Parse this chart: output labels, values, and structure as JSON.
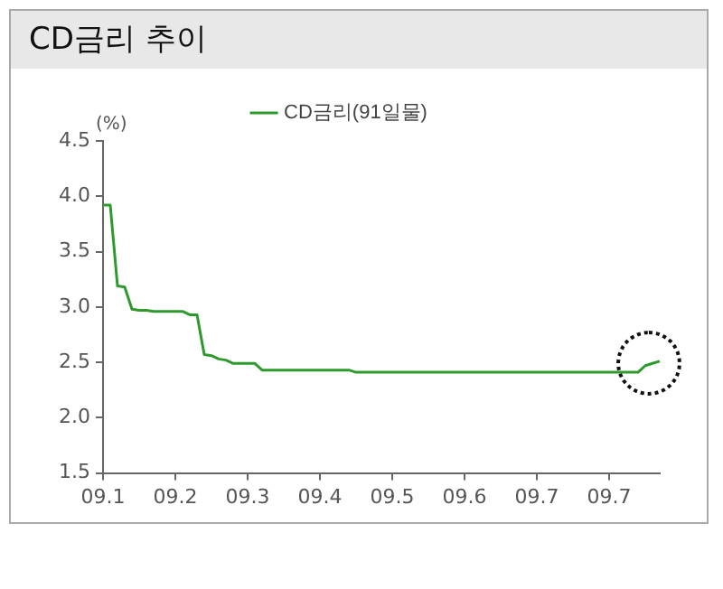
{
  "chart_data": {
    "type": "line",
    "title": "CD금리 추이",
    "ylabel": "(%)",
    "categories": [
      "09.1",
      null,
      null,
      null,
      null,
      null,
      null,
      null,
      null,
      null,
      "09.2",
      null,
      null,
      null,
      null,
      null,
      null,
      null,
      null,
      null,
      "09.3",
      null,
      null,
      null,
      null,
      null,
      null,
      null,
      null,
      null,
      "09.4",
      null,
      null,
      null,
      null,
      null,
      null,
      null,
      null,
      null,
      "09.5",
      null,
      null,
      null,
      null,
      null,
      null,
      null,
      null,
      null,
      "09.6",
      null,
      null,
      null,
      null,
      null,
      null,
      null,
      null,
      null,
      "09.7",
      null,
      null,
      null,
      null,
      null,
      null,
      null,
      null,
      null,
      "09.7",
      null,
      null,
      null,
      null,
      null,
      null,
      null
    ],
    "series": [
      {
        "name": "CD금리(91일물)",
        "color": "#2e9a2e",
        "values": [
          3.92,
          3.92,
          3.19,
          3.18,
          2.98,
          2.97,
          2.97,
          2.96,
          2.96,
          2.96,
          2.96,
          2.96,
          2.93,
          2.93,
          2.57,
          2.56,
          2.53,
          2.52,
          2.49,
          2.49,
          2.49,
          2.49,
          2.43,
          2.43,
          2.43,
          2.43,
          2.43,
          2.43,
          2.43,
          2.43,
          2.43,
          2.43,
          2.43,
          2.43,
          2.43,
          2.41,
          2.41,
          2.41,
          2.41,
          2.41,
          2.41,
          2.41,
          2.41,
          2.41,
          2.41,
          2.41,
          2.41,
          2.41,
          2.41,
          2.41,
          2.41,
          2.41,
          2.41,
          2.41,
          2.41,
          2.41,
          2.41,
          2.41,
          2.41,
          2.41,
          2.41,
          2.41,
          2.41,
          2.41,
          2.41,
          2.41,
          2.41,
          2.41,
          2.41,
          2.41,
          2.41,
          2.41,
          2.41,
          2.41,
          2.41,
          2.47,
          2.49,
          2.51
        ]
      }
    ],
    "ylim": [
      1.5,
      4.5
    ],
    "yticks": [
      {
        "value": 1.5,
        "label": "1.5"
      },
      {
        "value": 2,
        "label": "2.0"
      },
      {
        "value": 2.5,
        "label": "2.5"
      },
      {
        "value": 3,
        "label": "3.0"
      },
      {
        "value": 3.5,
        "label": "3.5"
      },
      {
        "value": 4,
        "label": "4.0"
      },
      {
        "value": 4.5,
        "label": "4.5"
      }
    ],
    "grid": false,
    "legend": "top",
    "marker": "none",
    "line_style": "solid"
  }
}
